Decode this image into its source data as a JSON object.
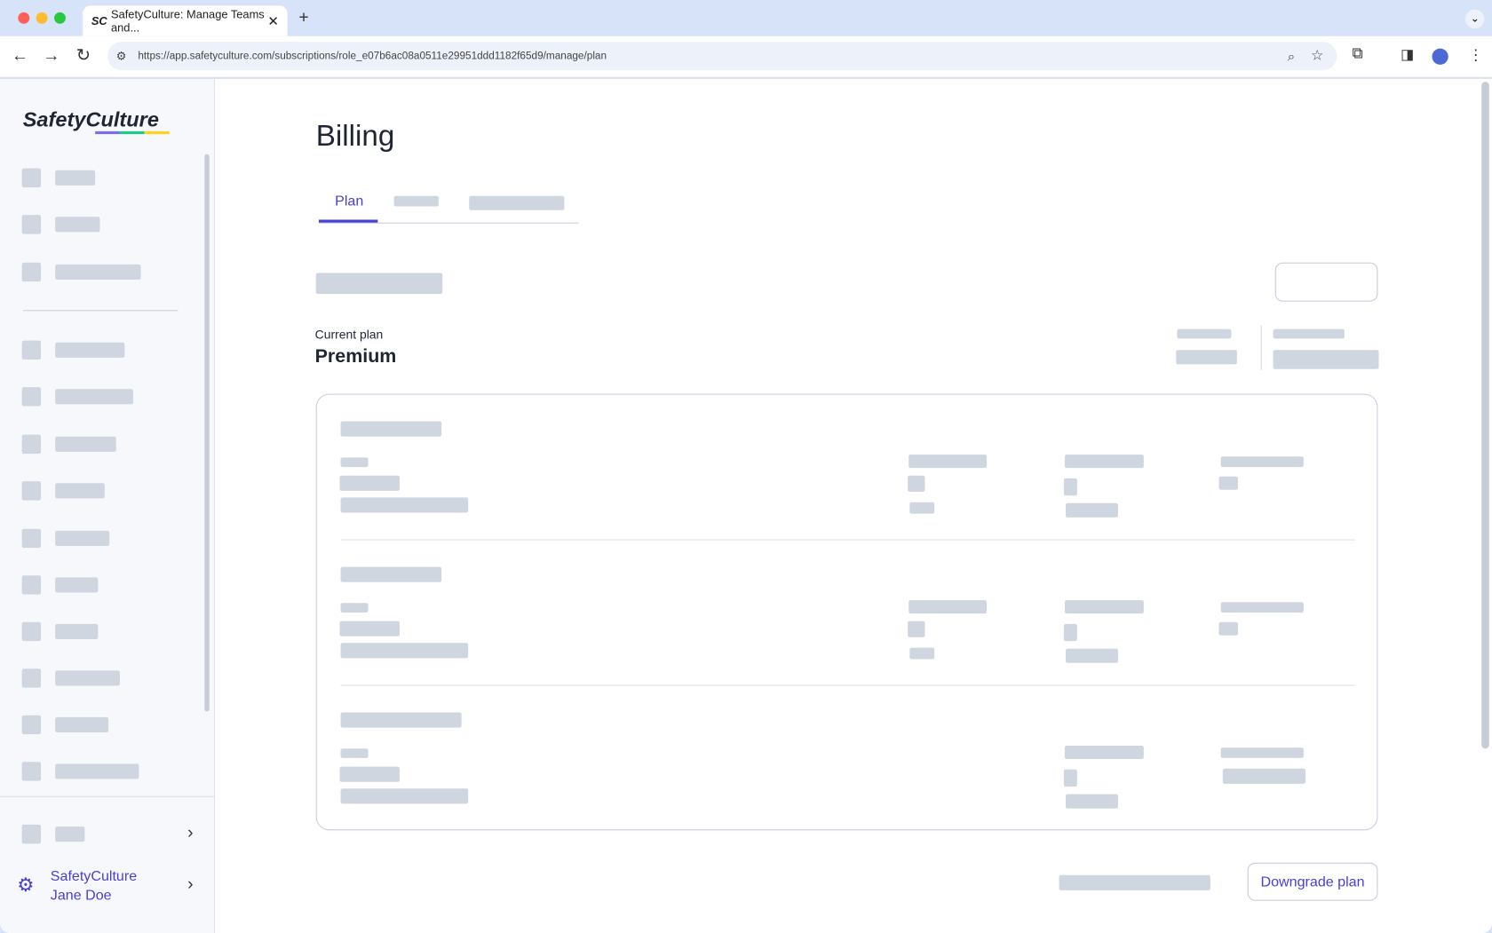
{
  "browser": {
    "tab_title": "SafetyCulture: Manage Teams and...",
    "favicon": "SC",
    "url": "https://app.safetyculture.com/subscriptions/role_e07b6ac08a0511e29951ddd1182f65d9/manage/plan"
  },
  "sidebar": {
    "logo": "SafetyCulture",
    "org_name": "SafetyCulture",
    "user_name": "Jane Doe"
  },
  "page": {
    "title": "Billing",
    "tabs": [
      {
        "label": "Plan",
        "active": true
      }
    ],
    "current_plan_label": "Current plan",
    "current_plan": "Premium",
    "downgrade_label": "Downgrade plan"
  },
  "colors": {
    "accent": "#4740d4",
    "skeleton": "#d0d6df"
  }
}
